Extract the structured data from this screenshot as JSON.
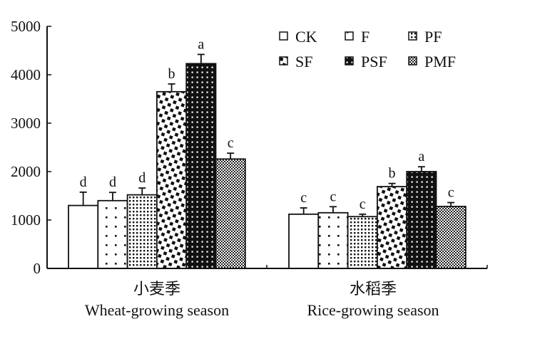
{
  "chart_data": {
    "type": "bar",
    "title": "",
    "xlabel": "",
    "ylabel": "",
    "ylim": [
      0,
      5000
    ],
    "yticks": [
      0,
      1000,
      2000,
      3000,
      4000,
      5000
    ],
    "grid": false,
    "legend_position": "top-right",
    "categories": [
      {
        "cn": "小麦季",
        "en": "Wheat-growing season"
      },
      {
        "cn": "水稻季",
        "en": "Rice-growing season"
      }
    ],
    "series": [
      {
        "name": "CK",
        "pattern": "open",
        "values": [
          1300,
          1120
        ],
        "error": [
          275,
          130
        ],
        "significance": [
          "d",
          "c"
        ]
      },
      {
        "name": "F",
        "pattern": "sparse-dots",
        "values": [
          1400,
          1150
        ],
        "error": [
          170,
          125
        ],
        "significance": [
          "d",
          "c"
        ]
      },
      {
        "name": "PF",
        "pattern": "dense-dots",
        "values": [
          1520,
          1070
        ],
        "error": [
          140,
          50
        ],
        "significance": [
          "d",
          "c"
        ]
      },
      {
        "name": "SF",
        "pattern": "squares",
        "values": [
          3650,
          1690
        ],
        "error": [
          160,
          65
        ],
        "significance": [
          "b",
          "b"
        ]
      },
      {
        "name": "PSF",
        "pattern": "black-dots",
        "values": [
          4230,
          2000
        ],
        "error": [
          190,
          100
        ],
        "significance": [
          "a",
          "a"
        ]
      },
      {
        "name": "PMF",
        "pattern": "checker",
        "values": [
          2260,
          1280
        ],
        "error": [
          120,
          80
        ],
        "significance": [
          "c",
          "c"
        ]
      }
    ]
  }
}
